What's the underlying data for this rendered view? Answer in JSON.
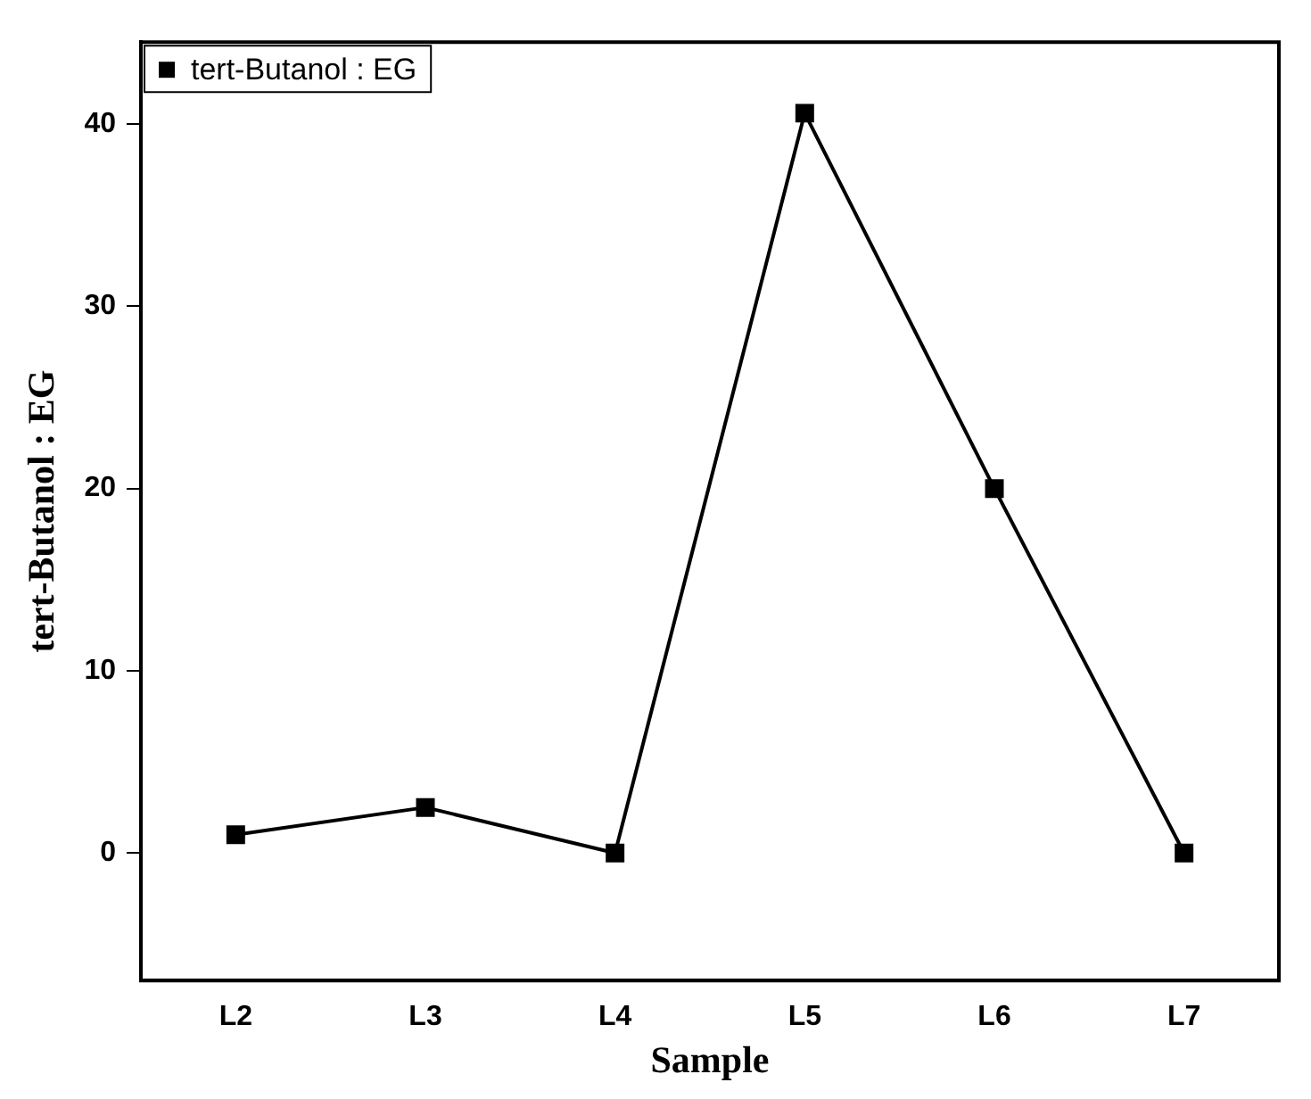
{
  "chart_data": {
    "type": "line",
    "xlabel": "Sample",
    "ylabel": "tert-Butanol : EG",
    "categories": [
      "L2",
      "L3",
      "L4",
      "L5",
      "L6",
      "L7"
    ],
    "series": [
      {
        "name": "tert-Butanol : EG",
        "color": "#000000",
        "values": [
          1,
          2.5,
          0,
          40.6,
          20,
          0
        ]
      }
    ],
    "ylim": [
      -7,
      44.5
    ],
    "yticks": [
      0,
      10,
      20,
      30,
      40
    ],
    "grid": false,
    "legend": "top left",
    "marker": "square",
    "line_style": "solid"
  }
}
